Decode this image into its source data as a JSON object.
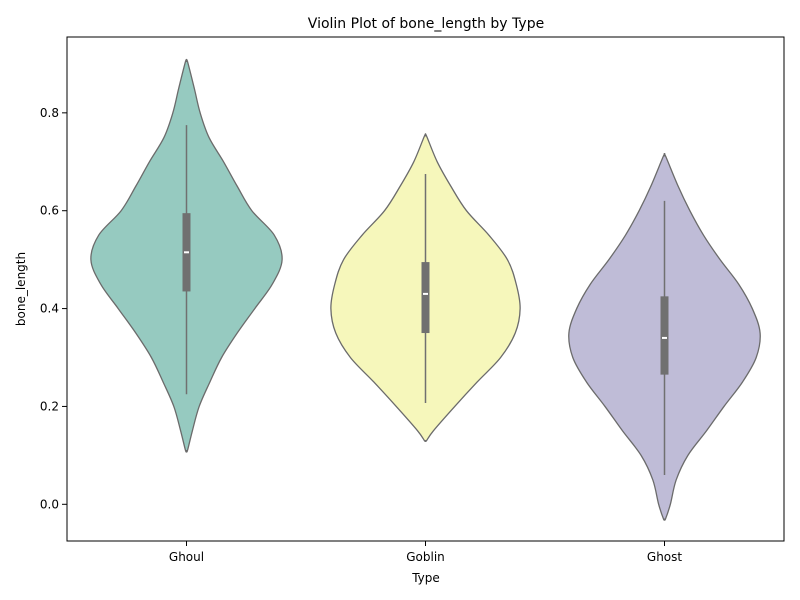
{
  "chart_data": {
    "type": "violin",
    "title": "Violin Plot of bone_length by Type",
    "xlabel": "Type",
    "ylabel": "bone_length",
    "ylim": [
      -0.075,
      0.955
    ],
    "yticks": [
      "0.0",
      "0.2",
      "0.4",
      "0.6",
      "0.8"
    ],
    "grid": false,
    "legend": "none",
    "box_color": "#707070",
    "median_color": "#ffffff",
    "outline_color": "#6b6b6b",
    "categories": [
      "Ghoul",
      "Goblin",
      "Ghost"
    ],
    "series": [
      {
        "category": "Ghoul",
        "color": "#96cac0",
        "q1": 0.435,
        "median": 0.515,
        "q3": 0.595,
        "whisker_low": 0.225,
        "whisker_high": 0.775,
        "density": [
          [
            0.11,
            0.001
          ],
          [
            0.15,
            0.006
          ],
          [
            0.2,
            0.013
          ],
          [
            0.25,
            0.024
          ],
          [
            0.3,
            0.036
          ],
          [
            0.35,
            0.052
          ],
          [
            0.4,
            0.07
          ],
          [
            0.45,
            0.088
          ],
          [
            0.5,
            0.098
          ],
          [
            0.55,
            0.09
          ],
          [
            0.6,
            0.067
          ],
          [
            0.65,
            0.052
          ],
          [
            0.7,
            0.038
          ],
          [
            0.75,
            0.023
          ],
          [
            0.8,
            0.014
          ],
          [
            0.85,
            0.008
          ],
          [
            0.905,
            0.001
          ]
        ]
      },
      {
        "category": "Goblin",
        "color": "#f6f7bb",
        "q1": 0.35,
        "median": 0.43,
        "q3": 0.495,
        "whisker_low": 0.207,
        "whisker_high": 0.675,
        "density": [
          [
            0.13,
            0.001
          ],
          [
            0.15,
            0.008
          ],
          [
            0.2,
            0.03
          ],
          [
            0.25,
            0.053
          ],
          [
            0.3,
            0.077
          ],
          [
            0.35,
            0.092
          ],
          [
            0.4,
            0.097
          ],
          [
            0.45,
            0.093
          ],
          [
            0.5,
            0.084
          ],
          [
            0.55,
            0.065
          ],
          [
            0.6,
            0.042
          ],
          [
            0.65,
            0.026
          ],
          [
            0.7,
            0.012
          ],
          [
            0.753,
            0.001
          ]
        ]
      },
      {
        "category": "Ghost",
        "color": "#bfbcd7",
        "q1": 0.265,
        "median": 0.34,
        "q3": 0.425,
        "whisker_low": 0.06,
        "whisker_high": 0.62,
        "density": [
          [
            -0.03,
            0.001
          ],
          [
            0.0,
            0.006
          ],
          [
            0.05,
            0.012
          ],
          [
            0.1,
            0.024
          ],
          [
            0.15,
            0.043
          ],
          [
            0.2,
            0.061
          ],
          [
            0.25,
            0.08
          ],
          [
            0.3,
            0.094
          ],
          [
            0.35,
            0.098
          ],
          [
            0.4,
            0.09
          ],
          [
            0.45,
            0.076
          ],
          [
            0.5,
            0.057
          ],
          [
            0.55,
            0.04
          ],
          [
            0.6,
            0.026
          ],
          [
            0.65,
            0.014
          ],
          [
            0.712,
            0.001
          ]
        ]
      }
    ]
  }
}
